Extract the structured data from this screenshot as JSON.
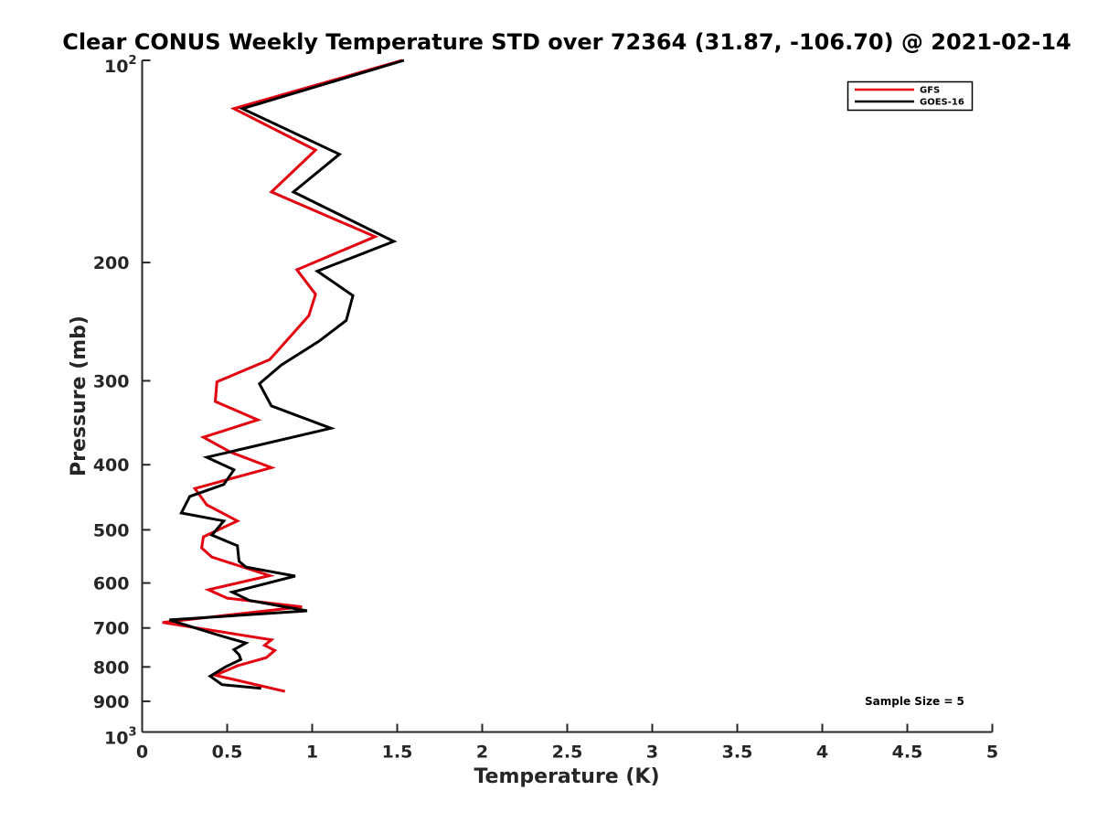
{
  "chart_data": {
    "type": "line",
    "title": "Clear CONUS Weekly Temperature STD over 72364 (31.87, -106.70) @ 2021-02-14",
    "xlabel": "Temperature (K)",
    "ylabel": "Pressure (mb)",
    "xlim": [
      0,
      5
    ],
    "ylim": [
      100,
      1000
    ],
    "y_scale": "log",
    "y_reversed": true,
    "grid": false,
    "legend_position": "top-right",
    "x_ticks": [
      "0",
      "0.5",
      "1",
      "1.5",
      "2",
      "2.5",
      "3",
      "3.5",
      "4",
      "4.5",
      "5"
    ],
    "y_ticks": [
      {
        "value": 100,
        "label": "10",
        "sup": "2"
      },
      {
        "value": 200,
        "label": "200"
      },
      {
        "value": 300,
        "label": "300"
      },
      {
        "value": 400,
        "label": "400"
      },
      {
        "value": 500,
        "label": "500"
      },
      {
        "value": 600,
        "label": "600"
      },
      {
        "value": 700,
        "label": "700"
      },
      {
        "value": 800,
        "label": "800"
      },
      {
        "value": 900,
        "label": "900"
      },
      {
        "value": 1000,
        "label": "10",
        "sup": "3"
      }
    ],
    "annotation": "Sample Size = 5",
    "series": [
      {
        "name": "GFS",
        "color": "#e3000f",
        "points": [
          [
            1.53,
            100
          ],
          [
            0.54,
            118
          ],
          [
            1.02,
            136
          ],
          [
            0.76,
            157
          ],
          [
            1.37,
            183
          ],
          [
            0.91,
            205
          ],
          [
            1.02,
            223
          ],
          [
            0.98,
            240
          ],
          [
            0.75,
            279
          ],
          [
            0.44,
            301
          ],
          [
            0.43,
            322
          ],
          [
            0.68,
            343
          ],
          [
            0.36,
            364
          ],
          [
            0.52,
            383
          ],
          [
            0.76,
            404
          ],
          [
            0.31,
            434
          ],
          [
            0.38,
            459
          ],
          [
            0.56,
            485
          ],
          [
            0.36,
            512
          ],
          [
            0.35,
            532
          ],
          [
            0.41,
            549
          ],
          [
            0.75,
            585
          ],
          [
            0.39,
            614
          ],
          [
            0.5,
            632
          ],
          [
            0.94,
            651
          ],
          [
            0.12,
            687
          ],
          [
            0.76,
            729
          ],
          [
            0.72,
            743
          ],
          [
            0.78,
            756
          ],
          [
            0.73,
            775
          ],
          [
            0.56,
            797
          ],
          [
            0.43,
            823
          ],
          [
            0.84,
            870
          ]
        ]
      },
      {
        "name": "GOES-16",
        "color": "#000000",
        "points": [
          [
            1.54,
            100
          ],
          [
            0.59,
            118
          ],
          [
            1.16,
            138
          ],
          [
            0.89,
            157
          ],
          [
            1.48,
            186
          ],
          [
            1.03,
            206
          ],
          [
            1.24,
            224
          ],
          [
            1.2,
            244
          ],
          [
            1.04,
            262
          ],
          [
            0.82,
            284
          ],
          [
            0.69,
            303
          ],
          [
            0.76,
            327
          ],
          [
            1.11,
            353
          ],
          [
            0.38,
            390
          ],
          [
            0.54,
            407
          ],
          [
            0.48,
            428
          ],
          [
            0.28,
            446
          ],
          [
            0.23,
            472
          ],
          [
            0.48,
            485
          ],
          [
            0.41,
            509
          ],
          [
            0.56,
            528
          ],
          [
            0.57,
            557
          ],
          [
            0.61,
            568
          ],
          [
            0.9,
            586
          ],
          [
            0.53,
            619
          ],
          [
            0.63,
            637
          ],
          [
            0.97,
            660
          ],
          [
            0.16,
            681
          ],
          [
            0.43,
            715
          ],
          [
            0.61,
            737
          ],
          [
            0.54,
            754
          ],
          [
            0.57,
            767
          ],
          [
            0.58,
            780
          ],
          [
            0.49,
            800
          ],
          [
            0.4,
            826
          ],
          [
            0.47,
            850
          ],
          [
            0.7,
            861
          ]
        ]
      }
    ]
  }
}
